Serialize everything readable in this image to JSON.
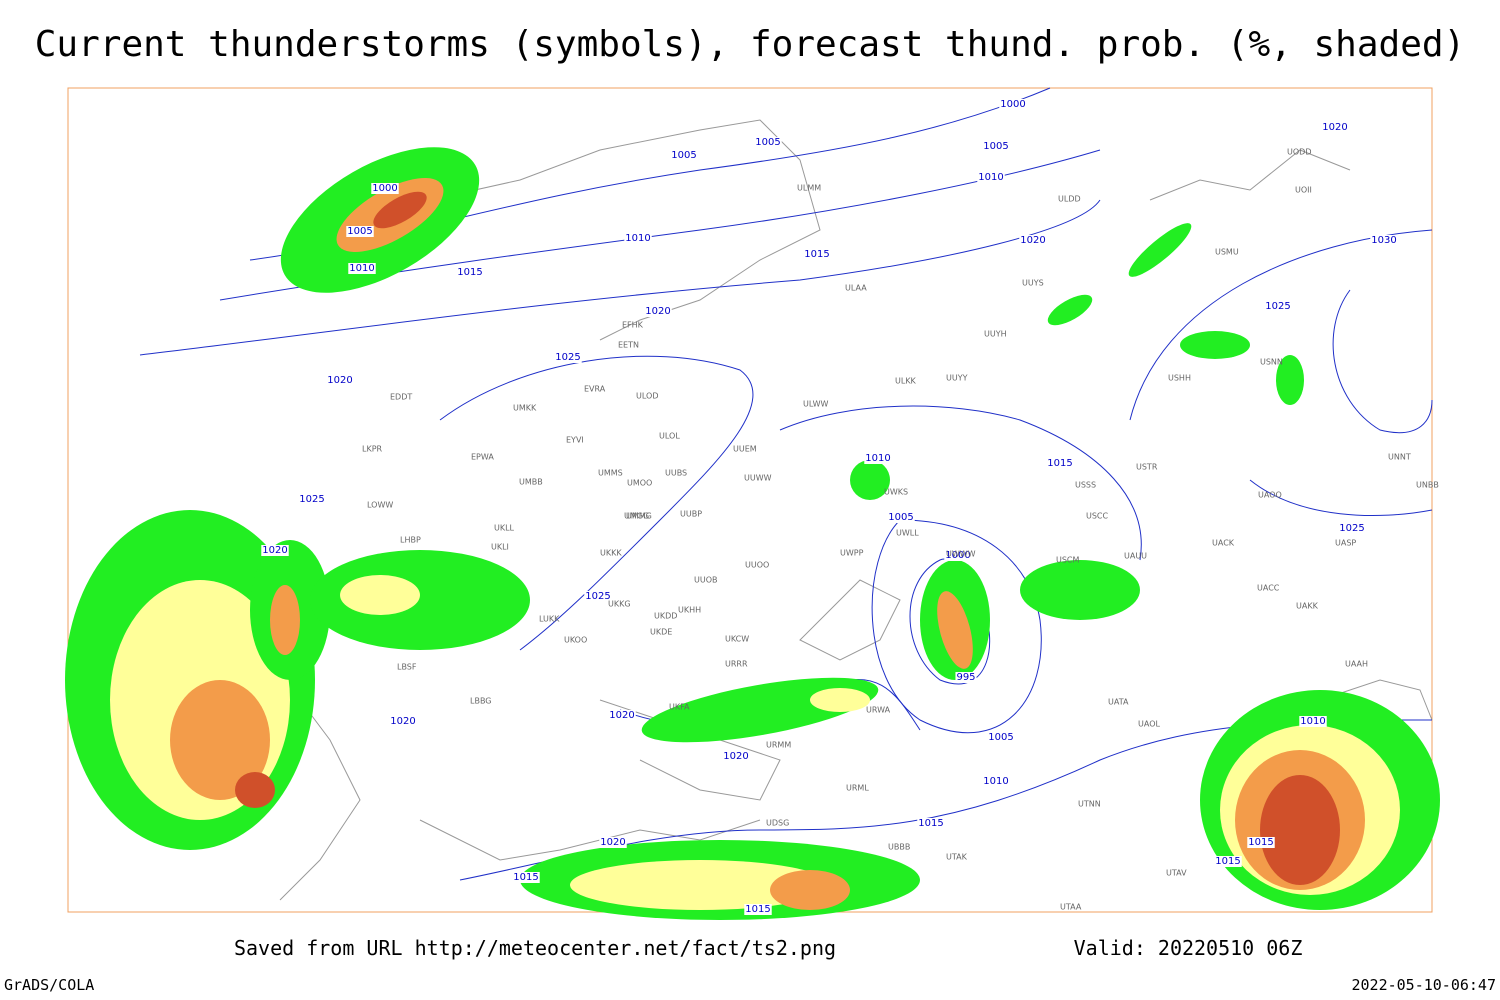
{
  "header": {
    "title": "Current thunderstorms (symbols), forecast thund. prob. (%, shaded)"
  },
  "isobar_labels": [
    "1000",
    "1005",
    "1010",
    "1015",
    "1010",
    "1005",
    "1005",
    "1000",
    "1005",
    "1010",
    "1015",
    "1020",
    "1020",
    "1025",
    "1020",
    "1025",
    "1020",
    "1030",
    "1025",
    "1020",
    "1010",
    "1015",
    "1005",
    "1000",
    "995",
    "1025",
    "1020",
    "1020",
    "1020",
    "1005",
    "1010",
    "1015",
    "1020",
    "1015",
    "1015",
    "1025",
    "1010",
    "1015",
    "1015"
  ],
  "stations": [
    "ULMM",
    "ULDD",
    "ULAA",
    "UUYS",
    "UUYH",
    "UUYY",
    "ULKK",
    "ULWW",
    "EFHK",
    "EETN",
    "EVRA",
    "ULOD",
    "UMKK",
    "EYVI",
    "ULOL",
    "UUEM",
    "EDDT",
    "EPWA",
    "UMMG",
    "UMMS",
    "UMOO",
    "UUBS",
    "UUWW",
    "UMBB",
    "UMGG",
    "UUBP",
    "UKLL",
    "UKLI",
    "UKKK",
    "UUOB",
    "UUOO",
    "UKKG",
    "UKDD",
    "UKHH",
    "UKDE",
    "LUKK",
    "UKOO",
    "UKCW",
    "URRR",
    "LBSF",
    "LBBG",
    "UKFA",
    "USSS",
    "USCC",
    "USTR",
    "UACC",
    "UAKK",
    "UAAH",
    "UATA",
    "UAOL",
    "UTNN",
    "UTAK",
    "UTAV",
    "UBBB",
    "URML",
    "URMM",
    "URWA",
    "UWWW",
    "UWPP",
    "UWKS",
    "UWLL",
    "USCM",
    "UAUU",
    "UACK",
    "UASP",
    "UAOO",
    "UNNT",
    "UNBB",
    "USHH",
    "USNN",
    "USMU",
    "UOII",
    "UODD",
    "UTAA",
    "UDSG",
    "LKPR",
    "LOWW",
    "LHBP"
  ],
  "footer": {
    "source": "Saved from URL http://meteocenter.net/fact/ts2.png",
    "valid": "Valid: 20220510 06Z",
    "software": "GrADS/COLA",
    "timestamp": "2022-05-10-06:47"
  }
}
